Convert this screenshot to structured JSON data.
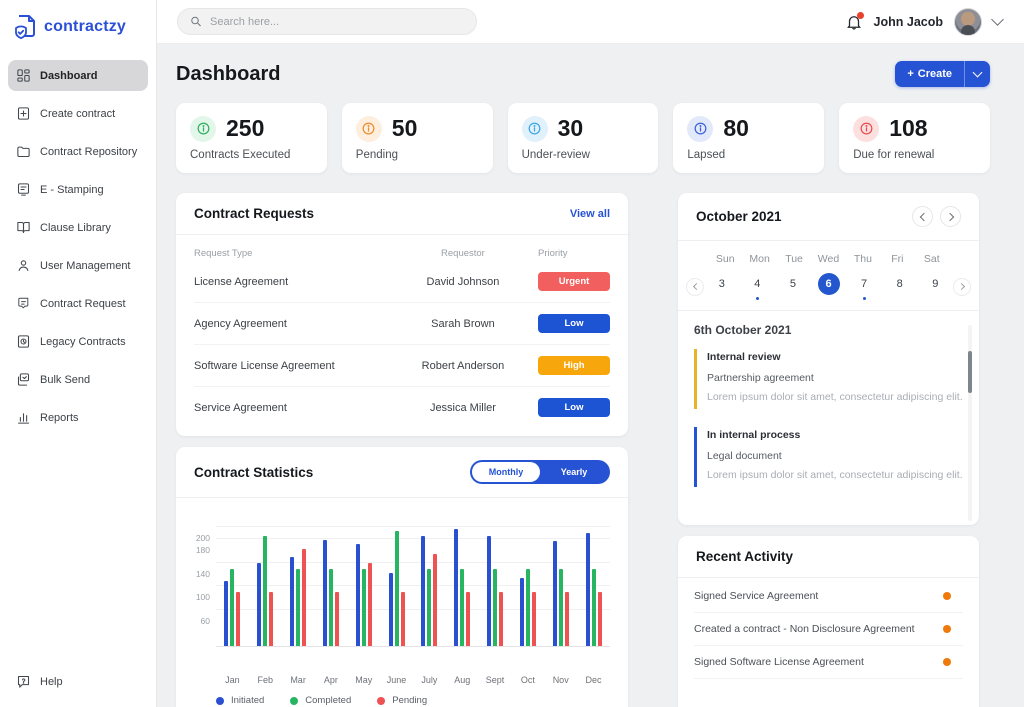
{
  "brand": {
    "name": "contractzy"
  },
  "topbar": {
    "search_placeholder": "Search here...",
    "user_name": "John Jacob"
  },
  "sidebar": {
    "items": [
      {
        "label": "Dashboard",
        "icon": "dashboard-icon",
        "active": true
      },
      {
        "label": "Create contract",
        "icon": "create-contract-icon",
        "active": false
      },
      {
        "label": "Contract Repository",
        "icon": "folder-icon",
        "active": false
      },
      {
        "label": "E - Stamping",
        "icon": "stamp-icon",
        "active": false
      },
      {
        "label": "Clause Library",
        "icon": "book-icon",
        "active": false
      },
      {
        "label": "User Management",
        "icon": "user-icon",
        "active": false
      },
      {
        "label": "Contract Request",
        "icon": "request-icon",
        "active": false
      },
      {
        "label": "Legacy Contracts",
        "icon": "legacy-icon",
        "active": false
      },
      {
        "label": "Bulk Send",
        "icon": "bulk-send-icon",
        "active": false
      },
      {
        "label": "Reports",
        "icon": "reports-icon",
        "active": false
      }
    ],
    "help_label": "Help"
  },
  "page": {
    "title": "Dashboard",
    "create_label": "Create"
  },
  "stats": [
    {
      "value": "250",
      "label": "Contracts Executed",
      "icon_color": "#2fae5f",
      "icon_bg": "#e3f6ea"
    },
    {
      "value": "50",
      "label": "Pending",
      "icon_color": "#ef8b2c",
      "icon_bg": "#fdeede"
    },
    {
      "value": "30",
      "label": "Under-review",
      "icon_color": "#3da5e8",
      "icon_bg": "#e1f1fc"
    },
    {
      "value": "80",
      "label": "Lapsed",
      "icon_color": "#3d62d8",
      "icon_bg": "#e2e9fb"
    },
    {
      "value": "108",
      "label": "Due for renewal",
      "icon_color": "#e84d4d",
      "icon_bg": "#fce0e0"
    }
  ],
  "contract_requests": {
    "title": "Contract Requests",
    "view_all_label": "View all",
    "columns": [
      "Request Type",
      "Requestor",
      "Priority"
    ],
    "rows": [
      {
        "type": "License Agreement",
        "requestor": "David Johnson",
        "priority": "Urgent",
        "priority_color": "#f25f5f"
      },
      {
        "type": "Agency Agreement",
        "requestor": "Sarah Brown",
        "priority": "Low",
        "priority_color": "#1d54d4"
      },
      {
        "type": "Software License Agreement",
        "requestor": "Robert Anderson",
        "priority": "High",
        "priority_color": "#f7a70b"
      },
      {
        "type": "Service Agreement",
        "requestor": "Jessica Miller",
        "priority": "Low",
        "priority_color": "#1d54d4"
      }
    ]
  },
  "chart_data": {
    "type": "bar",
    "title": "Contract Statistics",
    "toggle": {
      "options": [
        "Monthly",
        "Yearly"
      ],
      "selected": "Monthly"
    },
    "categories": [
      "Jan",
      "Feb",
      "Mar",
      "Apr",
      "May",
      "June",
      "July",
      "Aug",
      "Sept",
      "Oct",
      "Nov",
      "Dec"
    ],
    "series": [
      {
        "name": "Initiated",
        "color": "#2a50d2",
        "values": [
          110,
          140,
          150,
          178,
          172,
          122,
          185,
          197,
          185,
          115,
          176,
          190
        ]
      },
      {
        "name": "Completed",
        "color": "#27b561",
        "values": [
          130,
          185,
          130,
          130,
          130,
          193,
          130,
          130,
          130,
          130,
          130,
          130
        ]
      },
      {
        "name": "Pending",
        "color": "#ee5253",
        "values": [
          90,
          90,
          163,
          90,
          140,
          90,
          155,
          90,
          90,
          90,
          90,
          90
        ]
      }
    ],
    "yticks": [
      60,
      100,
      140,
      180,
      200
    ],
    "ylim": [
      0,
      210
    ],
    "grid": true,
    "legend_position": "bottom"
  },
  "calendar": {
    "month_label": "October 2021",
    "weekdays": [
      "Sun",
      "Mon",
      "Tue",
      "Wed",
      "Thu",
      "Fri",
      "Sat"
    ],
    "dates": [
      {
        "day": "3",
        "selected": false,
        "dot": false
      },
      {
        "day": "4",
        "selected": false,
        "dot": true
      },
      {
        "day": "5",
        "selected": false,
        "dot": false
      },
      {
        "day": "6",
        "selected": true,
        "dot": false
      },
      {
        "day": "7",
        "selected": false,
        "dot": true
      },
      {
        "day": "8",
        "selected": false,
        "dot": false
      },
      {
        "day": "9",
        "selected": false,
        "dot": false
      }
    ],
    "selected_date_heading": "6th October 2021",
    "events": [
      {
        "status": "Internal review",
        "title": "Partnership agreement",
        "description": "Lorem ipsum dolor sit amet, consectetur adipiscing elit.",
        "accent": "#e5b427"
      },
      {
        "status": "In internal process",
        "title": "Legal document",
        "description": "Lorem ipsum dolor sit amet, consectetur adipiscing elit.",
        "accent": "#2653d4"
      }
    ]
  },
  "recent_activity": {
    "title": "Recent Activity",
    "dot_color": "#f0790b",
    "items": [
      "Signed Service Agreement",
      "Created a contract - Non Disclosure Agreement",
      "Signed Software License Agreement"
    ]
  }
}
